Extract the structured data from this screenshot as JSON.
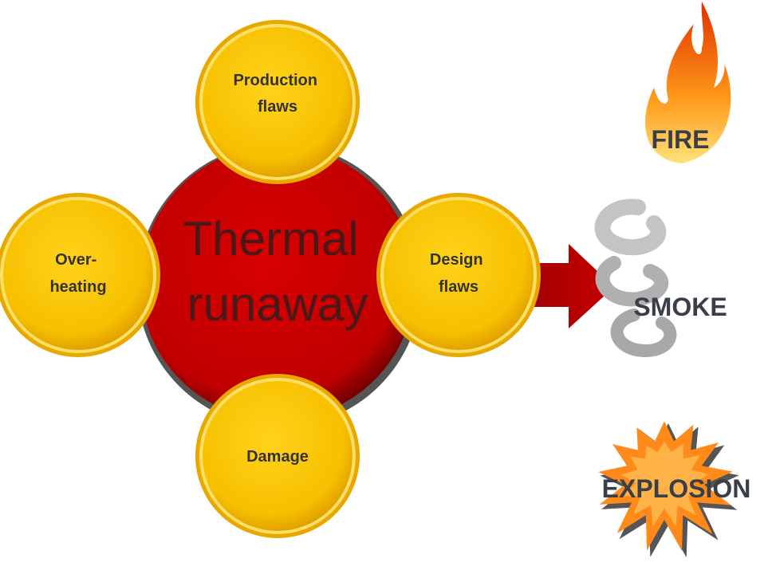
{
  "center": {
    "lines": [
      "Thermal",
      "runaway"
    ]
  },
  "nodes": [
    {
      "lines": [
        "Production",
        "flaws"
      ]
    },
    {
      "lines": [
        "Over-",
        "heating"
      ]
    },
    {
      "lines": [
        "Design",
        "flaws"
      ]
    },
    {
      "lines": [
        "Damage"
      ]
    }
  ],
  "outcomes": [
    "FIRE",
    "SMOKE",
    "EXPLOSION"
  ]
}
